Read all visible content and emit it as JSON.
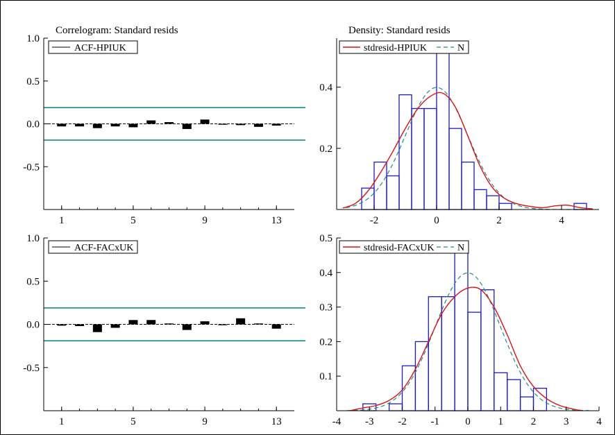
{
  "chart_data": [
    {
      "type": "bar",
      "title": "Correlogram: Standard resids",
      "legend": {
        "items": [
          "ACF-HPIUK"
        ],
        "placement": "top-left"
      },
      "x": [
        1,
        2,
        3,
        4,
        5,
        6,
        7,
        8,
        9,
        10,
        11,
        12,
        13
      ],
      "values": [
        -0.03,
        -0.03,
        -0.05,
        -0.03,
        -0.04,
        0.04,
        0.02,
        -0.06,
        0.05,
        -0.01,
        -0.015,
        -0.035,
        -0.02
      ],
      "confidence_band": 0.19,
      "ylim": [
        -1.0,
        1.0
      ],
      "xlim": [
        0,
        14
      ],
      "yticks": [
        1.0,
        0.5,
        0.0,
        -0.5
      ],
      "xticks": [
        1,
        5,
        9,
        13
      ],
      "ytick_labels": [
        "1.0",
        "0.5",
        "0.0",
        "-0.5"
      ],
      "xtick_labels": [
        "1",
        "5",
        "9",
        "13"
      ]
    },
    {
      "type": "histogram",
      "title": "Density: Standard resids",
      "legend": {
        "items": [
          "stdresid-HPIUK",
          "N"
        ],
        "placement": "top"
      },
      "bins": {
        "start": -2.4,
        "width": 0.4,
        "values": [
          0.07,
          0.155,
          0.11,
          0.375,
          0.33,
          0.33,
          0.53,
          0.265,
          0.155,
          0.065,
          0.045,
          0.02,
          0.0,
          0.0,
          0.0,
          0.0,
          0.0,
          0.02
        ]
      },
      "kde": [
        [
          -3.0,
          0.005
        ],
        [
          -2.6,
          0.02
        ],
        [
          -2.2,
          0.06
        ],
        [
          -1.8,
          0.12
        ],
        [
          -1.4,
          0.19
        ],
        [
          -1.0,
          0.265
        ],
        [
          -0.6,
          0.33
        ],
        [
          -0.2,
          0.37
        ],
        [
          0.2,
          0.38
        ],
        [
          0.6,
          0.335
        ],
        [
          1.0,
          0.24
        ],
        [
          1.4,
          0.14
        ],
        [
          1.8,
          0.07
        ],
        [
          2.2,
          0.035
        ],
        [
          2.6,
          0.018
        ],
        [
          3.0,
          0.01
        ],
        [
          3.4,
          0.006
        ],
        [
          3.8,
          0.012
        ],
        [
          4.2,
          0.014
        ],
        [
          4.6,
          0.006
        ],
        [
          5.0,
          0.002
        ]
      ],
      "normal": {
        "mean": 0.0,
        "sd": 1.0
      },
      "xlim": [
        -3.2,
        5.2
      ],
      "ylim": [
        0,
        0.56
      ],
      "yticks": [
        0.2,
        0.4
      ],
      "xticks": [
        -2,
        0,
        2,
        4
      ],
      "ytick_labels": [
        "0.2",
        "0.4"
      ],
      "xtick_labels": [
        "-2",
        "0",
        "2",
        "4"
      ]
    },
    {
      "type": "bar",
      "title": "",
      "legend": {
        "items": [
          "ACF-FACxUK"
        ],
        "placement": "top-left"
      },
      "x": [
        1,
        2,
        3,
        4,
        5,
        6,
        7,
        8,
        9,
        10,
        11,
        12,
        13
      ],
      "values": [
        -0.015,
        -0.02,
        -0.09,
        -0.04,
        0.05,
        0.05,
        0.01,
        -0.065,
        0.035,
        -0.01,
        0.07,
        0.01,
        -0.05
      ],
      "confidence_band": 0.19,
      "ylim": [
        -1.0,
        1.0
      ],
      "xlim": [
        0,
        14
      ],
      "yticks": [
        1.0,
        0.5,
        0.0,
        -0.5
      ],
      "xticks": [
        1,
        5,
        9,
        13
      ],
      "ytick_labels": [
        "1.0",
        "0.5",
        "0.0",
        "-0.5"
      ],
      "xtick_labels": [
        "1",
        "5",
        "9",
        "13"
      ]
    },
    {
      "type": "histogram",
      "title": "",
      "legend": {
        "items": [
          "stdresid-FACxUK",
          "N"
        ],
        "placement": "top"
      },
      "bins": {
        "start": -3.2,
        "width": 0.4,
        "values": [
          0.02,
          0.0,
          0.02,
          0.13,
          0.2,
          0.33,
          0.33,
          0.46,
          0.285,
          0.35,
          0.11,
          0.09,
          0.04,
          0.065
        ]
      },
      "kde": [
        [
          -3.6,
          0.0
        ],
        [
          -3.2,
          0.008
        ],
        [
          -2.8,
          0.015
        ],
        [
          -2.4,
          0.03
        ],
        [
          -2.0,
          0.06
        ],
        [
          -1.6,
          0.12
        ],
        [
          -1.2,
          0.2
        ],
        [
          -0.8,
          0.28
        ],
        [
          -0.4,
          0.33
        ],
        [
          0.0,
          0.355
        ],
        [
          0.4,
          0.35
        ],
        [
          0.8,
          0.3
        ],
        [
          1.2,
          0.22
        ],
        [
          1.6,
          0.13
        ],
        [
          2.0,
          0.07
        ],
        [
          2.4,
          0.035
        ],
        [
          2.8,
          0.015
        ],
        [
          3.2,
          0.005
        ],
        [
          3.5,
          0.0
        ]
      ],
      "normal": {
        "mean": 0.0,
        "sd": 1.0
      },
      "xlim": [
        -4.0,
        4.0
      ],
      "ylim": [
        0,
        0.5
      ],
      "yticks": [
        0.1,
        0.2,
        0.3,
        0.4,
        0.5
      ],
      "xticks": [
        -4,
        -3,
        -2,
        -1,
        0,
        1,
        2,
        3,
        4
      ],
      "ytick_labels": [
        "0.1",
        "0.2",
        "0.3",
        "0.4",
        "0.5"
      ],
      "xtick_labels": [
        "-4",
        "-3",
        "-2",
        "-1",
        "0",
        "1",
        "2",
        "3",
        "4"
      ]
    }
  ],
  "colors": {
    "axis": "#000000",
    "acf_bar": "#000000",
    "band": "#1e8a8a",
    "hist": "#1a1acc",
    "kde": "#e01010",
    "normal": "#1e8a8a"
  }
}
